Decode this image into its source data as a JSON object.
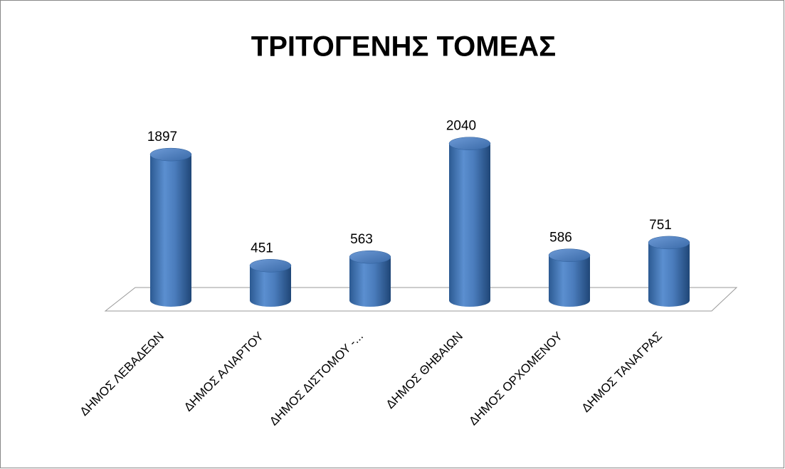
{
  "chart_data": {
    "type": "bar",
    "title": "ΤΡΙΤΟΓΕΝΗΣ ΤΟΜΕΑΣ",
    "categories": [
      "ΔΗΜΟΣ ΛΕΒΑΔΕΩΝ",
      "ΔΗΜΟΣ ΑΛΙΑΡΤΟΥ",
      "ΔΗΜΟΣ ΔΙΣΤΟΜΟΥ -...",
      "ΔΗΜΟΣ ΘΗΒΑΙΩΝ",
      "ΔΗΜΟΣ ΟΡΧΟΜΕΝΟΥ",
      "ΔΗΜΟΣ ΤΑΝΑΓΡΑΣ"
    ],
    "values": [
      1897,
      451,
      563,
      2040,
      586,
      751
    ],
    "color": "#4f81bd"
  }
}
